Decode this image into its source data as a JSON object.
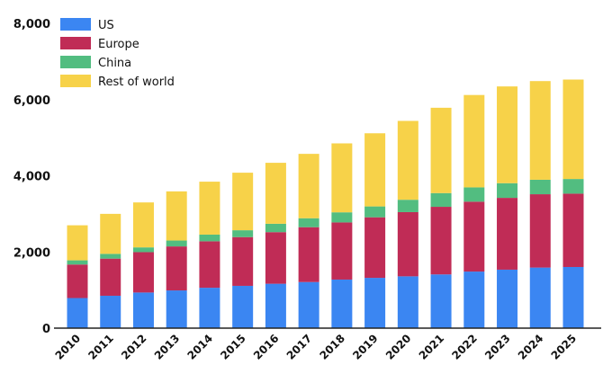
{
  "chart_data": {
    "type": "bar",
    "stacked": true,
    "title": "",
    "xlabel": "",
    "ylabel": "",
    "ylim": [
      0,
      8000
    ],
    "yticks": [
      0,
      2000,
      4000,
      6000,
      8000
    ],
    "ytick_labels": [
      "0",
      "2,000",
      "4,000",
      "6,000",
      "8,000"
    ],
    "grid": false,
    "legend_position": "top-left",
    "categories": [
      "2010",
      "2011",
      "2012",
      "2013",
      "2014",
      "2015",
      "2016",
      "2017",
      "2018",
      "2019",
      "2020",
      "2021",
      "2022",
      "2023",
      "2024",
      "2025"
    ],
    "series": [
      {
        "name": "US",
        "color": "#3b86f2",
        "values": [
          790,
          850,
          935,
          990,
          1060,
          1110,
          1165,
          1210,
          1275,
          1320,
          1360,
          1410,
          1485,
          1535,
          1590,
          1605
        ]
      },
      {
        "name": "Europe",
        "color": "#c02c56",
        "values": [
          880,
          975,
          1060,
          1155,
          1220,
          1280,
          1355,
          1440,
          1500,
          1590,
          1685,
          1775,
          1835,
          1885,
          1925,
          1925
        ]
      },
      {
        "name": "China",
        "color": "#52bd80",
        "values": [
          110,
          125,
          125,
          155,
          175,
          180,
          220,
          235,
          265,
          285,
          325,
          360,
          375,
          385,
          380,
          385
        ]
      },
      {
        "name": "Rest of world",
        "color": "#f7d249",
        "values": [
          920,
          1050,
          1180,
          1290,
          1390,
          1510,
          1600,
          1690,
          1810,
          1920,
          2070,
          2240,
          2425,
          2540,
          2590,
          2610
        ]
      }
    ]
  }
}
